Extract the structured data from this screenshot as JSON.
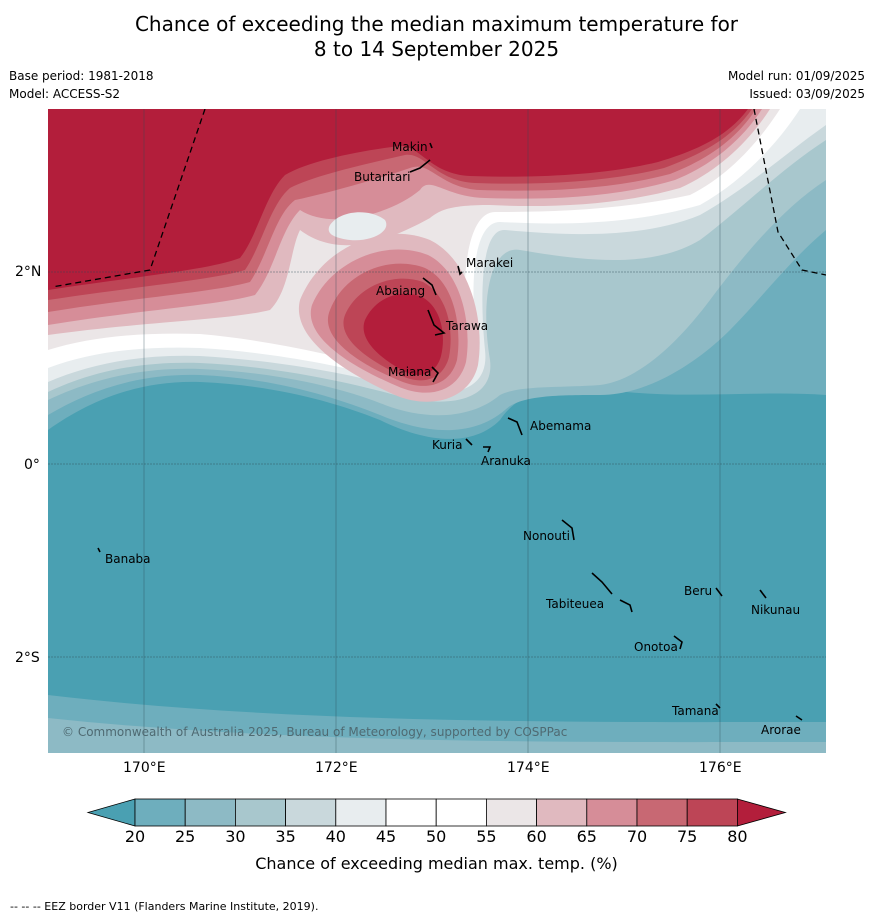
{
  "title": {
    "line1": "Chance of exceeding the median maximum temperature for",
    "line2": "8 to 14 September 2025"
  },
  "meta": {
    "base_period": "Base period: 1981-2018",
    "model": "Model: ACCESS-S2",
    "model_run": "Model run: 01/09/2025",
    "issued": "Issued: 03/09/2025"
  },
  "map": {
    "copyright": "© Commonwealth of Australia 2025, Bureau of Meteorology, supported by COSPPac",
    "lat_labels": [
      "2°N",
      "0°",
      "2°S"
    ],
    "lon_labels": [
      "170°E",
      "172°E",
      "174°E",
      "176°E"
    ],
    "places": [
      "Makin",
      "Butaritari",
      "Marakei",
      "Abaiang",
      "Tarawa",
      "Maiana",
      "Abemama",
      "Kuria",
      "Aranuka",
      "Banaba",
      "Nonouti",
      "Beru",
      "Tabiteuea",
      "Nikunau",
      "Onotoa",
      "Tamana",
      "Arorae"
    ],
    "colors": {
      "ocean_low": "#4aa0b2",
      "high": "#b31e3b"
    }
  },
  "colorbar": {
    "ticks": [
      "20",
      "25",
      "30",
      "35",
      "40",
      "45",
      "50",
      "55",
      "60",
      "65",
      "70",
      "75",
      "80"
    ],
    "colors": [
      "#4aa0b2",
      "#6eaebd",
      "#8dbac5",
      "#a8c7cd",
      "#c9d8dc",
      "#e8edef",
      "#ffffff",
      "#ffffff",
      "#ebe6e7",
      "#e0b9bf",
      "#d68d98",
      "#c86873",
      "#bd4556",
      "#b31e3b"
    ],
    "label": "Chance of exceeding median max. temp. (%)"
  },
  "footer": "--  --  -- EEZ border V11 (Flanders Marine Institute, 2019)."
}
